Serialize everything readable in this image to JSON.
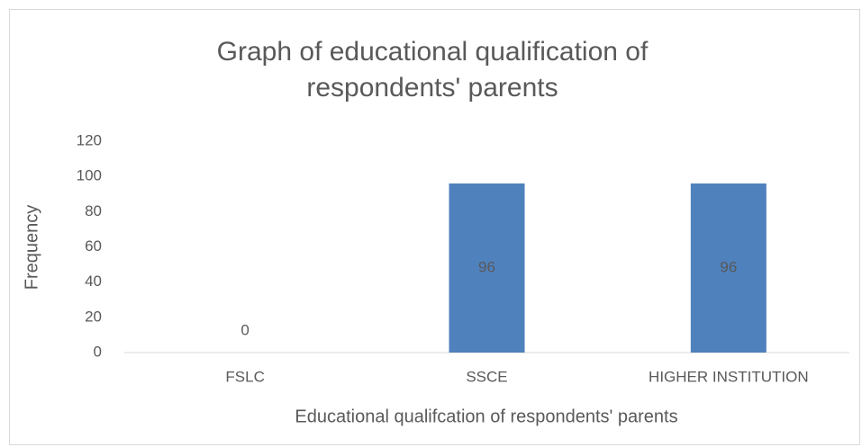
{
  "chart_data": {
    "type": "bar",
    "title": "Graph of educational qualification of respondents' parents",
    "x_label": "Educational qualifcation of respondents' parents",
    "y_label": "Frequency",
    "categories": [
      "FSLC",
      "SSCE",
      "HIGHER INSTITUTION"
    ],
    "values": [
      0,
      96,
      96
    ],
    "color": "#4f81bd",
    "ylim": [
      0,
      120
    ],
    "yticks": [
      0,
      20,
      40,
      60,
      80,
      100,
      120
    ],
    "grid": false
  }
}
